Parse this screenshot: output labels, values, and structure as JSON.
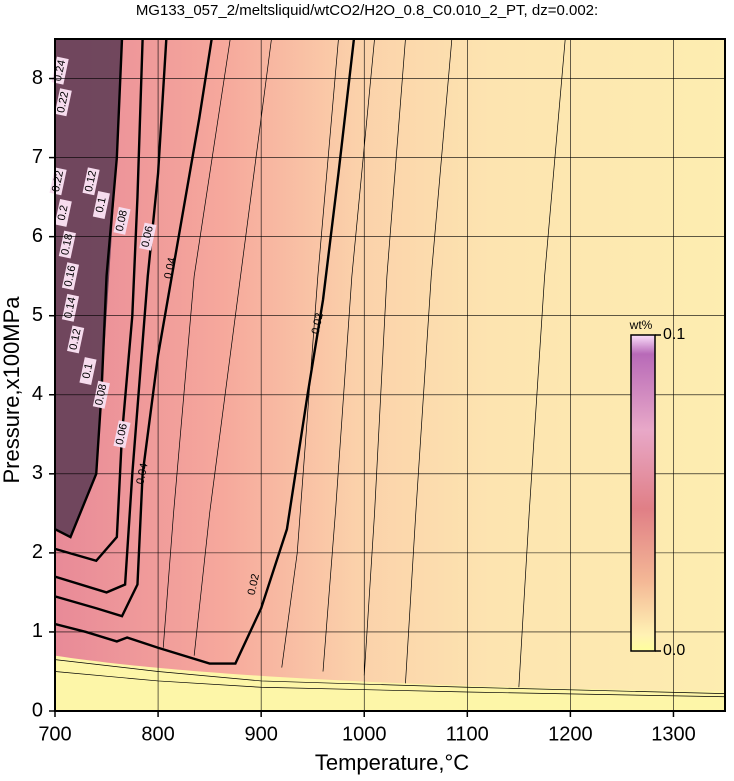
{
  "chart_data": {
    "type": "contour",
    "title": "MG133_057_2/meltsliquid/wtCO2/H2O_0.8_C0.010_2_PT, dz=0.002:",
    "x_label": "Temperature,°C",
    "y_label": "Pressure,x100MPa",
    "xlim": [
      700,
      1350
    ],
    "ylim": [
      0,
      8.5
    ],
    "xticks": [
      700,
      800,
      900,
      1000,
      1100,
      1200,
      1300
    ],
    "yticks": [
      0,
      1,
      2,
      3,
      4,
      5,
      6,
      7,
      8
    ],
    "grid": true,
    "contours": [
      {
        "level": 0.02,
        "x": [
          700,
          730,
          760,
          770,
          800,
          850,
          875,
          900,
          925,
          945,
          960,
          975,
          990
        ],
        "y": [
          1.1,
          1.0,
          0.88,
          0.93,
          0.8,
          0.6,
          0.6,
          1.3,
          2.3,
          4.0,
          5.2,
          6.8,
          8.5
        ]
      },
      {
        "level": 0.04,
        "x": [
          700,
          740,
          765,
          780,
          785,
          800,
          820,
          840,
          852
        ],
        "y": [
          1.45,
          1.3,
          1.2,
          1.6,
          3.0,
          4.5,
          6.0,
          7.5,
          8.5
        ]
      },
      {
        "level": 0.06,
        "x": [
          700,
          750,
          768,
          775,
          790,
          800,
          808
        ],
        "y": [
          1.7,
          1.5,
          1.6,
          3.0,
          5.5,
          6.8,
          8.5
        ]
      },
      {
        "level": 0.08,
        "x": [
          700,
          740,
          760,
          765,
          775,
          780,
          785
        ],
        "y": [
          2.05,
          1.9,
          2.2,
          3.5,
          5.0,
          6.5,
          8.5
        ]
      },
      {
        "level": 0.1,
        "x": [
          700,
          715,
          740,
          745,
          750,
          760,
          765
        ],
        "y": [
          2.3,
          2.2,
          3.0,
          4.0,
          5.5,
          7.0,
          8.5
        ]
      }
    ],
    "thin_contours": [
      {
        "x": [
          1150,
          1160,
          1175,
          1195
        ],
        "y": [
          0.3,
          2.5,
          5.5,
          8.5
        ]
      },
      {
        "x": [
          1040,
          1050,
          1065,
          1085
        ],
        "y": [
          0.35,
          2.5,
          5.5,
          8.5
        ]
      },
      {
        "x": [
          1000,
          1010,
          1022,
          1040
        ],
        "y": [
          0.45,
          2.5,
          5.5,
          8.5
        ]
      },
      {
        "x": [
          960,
          972,
          988,
          1010
        ],
        "y": [
          0.5,
          2.5,
          5.5,
          8.5
        ]
      },
      {
        "x": [
          920,
          935,
          955,
          975
        ],
        "y": [
          0.55,
          2.0,
          5.5,
          8.5
        ]
      },
      {
        "x": [
          835,
          850,
          880,
          910
        ],
        "y": [
          0.7,
          2.5,
          5.5,
          8.5
        ]
      },
      {
        "x": [
          805,
          815,
          835,
          870
        ],
        "y": [
          0.8,
          2.5,
          5.5,
          8.5
        ]
      },
      {
        "x": [
          700,
          800,
          900,
          1100,
          1350
        ],
        "y": [
          0.65,
          0.5,
          0.38,
          0.3,
          0.22
        ]
      },
      {
        "x": [
          700,
          800,
          900,
          1100,
          1350
        ],
        "y": [
          0.5,
          0.38,
          0.3,
          0.24,
          0.18
        ]
      }
    ],
    "contour_labels": [
      {
        "level": 0.02,
        "x": 955,
        "y": 4.9
      },
      {
        "level": 0.02,
        "x": 893,
        "y": 1.6
      },
      {
        "level": 0.04,
        "x": 812,
        "y": 5.6
      },
      {
        "level": 0.04,
        "x": 785,
        "y": 3.0
      },
      {
        "level": 0.06,
        "x": 790,
        "y": 6.0
      },
      {
        "level": 0.06,
        "x": 765,
        "y": 3.5
      },
      {
        "level": 0.08,
        "x": 765,
        "y": 6.2
      },
      {
        "level": 0.08,
        "x": 745,
        "y": 4.0
      },
      {
        "level": 0.1,
        "x": 745,
        "y": 6.4
      },
      {
        "level": 0.1,
        "x": 732,
        "y": 4.3
      },
      {
        "level": 0.12,
        "x": 735,
        "y": 6.7
      },
      {
        "level": 0.12,
        "x": 720,
        "y": 4.7
      },
      {
        "level": 0.14,
        "x": 715,
        "y": 5.1
      },
      {
        "level": 0.16,
        "x": 715,
        "y": 5.5
      },
      {
        "level": 0.18,
        "x": 712,
        "y": 5.9
      },
      {
        "level": 0.2,
        "x": 708,
        "y": 6.3
      },
      {
        "level": 0.22,
        "x": 703,
        "y": 6.7
      },
      {
        "level": 0.22,
        "x": 708,
        "y": 7.7
      },
      {
        "level": 0.24,
        "x": 705,
        "y": 8.1
      }
    ],
    "colorbar": {
      "label": "wt%",
      "ticks": [
        {
          "value": 0,
          "label": "0.0"
        },
        0.1
      ],
      "lim": [
        0,
        0.1
      ]
    }
  }
}
